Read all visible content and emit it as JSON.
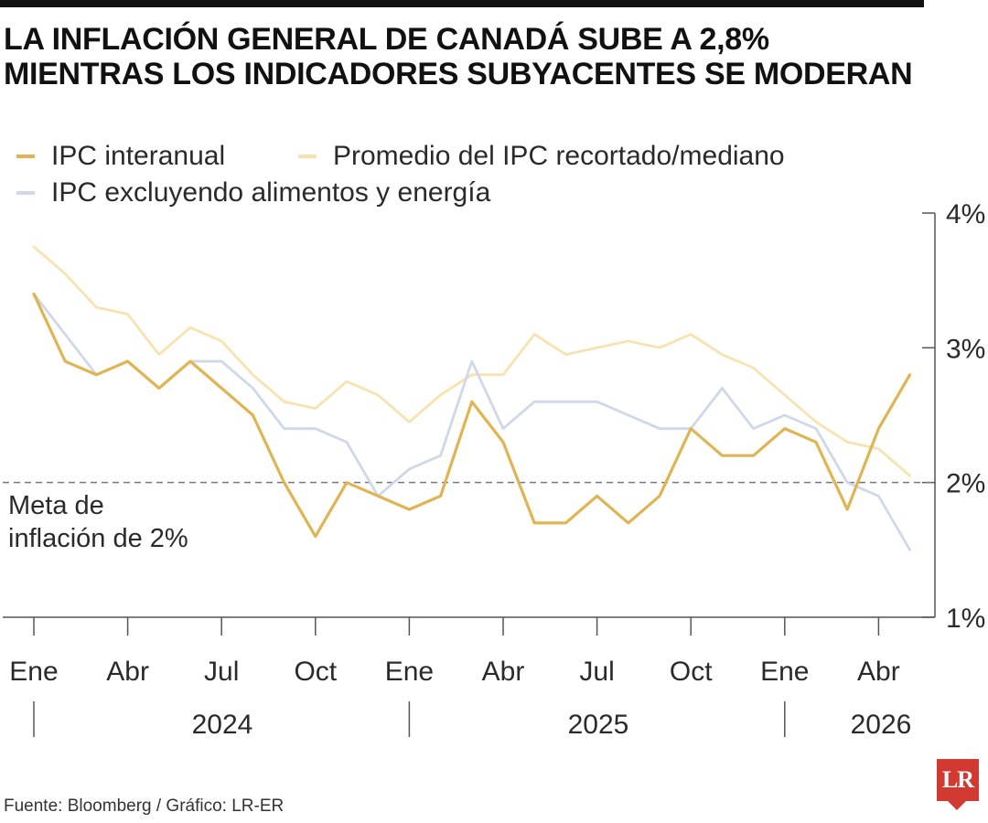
{
  "header": {
    "title_line1": "LA INFLACIÓN GENERAL DE CANADÁ SUBE A 2,8%",
    "title_line2": "MIENTRAS LOS INDICADORES SUBYACENTES SE MODERAN"
  },
  "footer": {
    "source": "Fuente: Bloomberg / Gráfico: LR-ER",
    "logo_text": "LR"
  },
  "colors": {
    "headline": "#e0b452",
    "trimmed": "#f8e2b0",
    "core": "#cfd8ea",
    "axis": "#555555",
    "target": "#777777",
    "logo": "#d23a31"
  },
  "chart_data": {
    "type": "line",
    "title": "LA INFLACIÓN GENERAL DE CANADÁ SUBE A 2,8% MIENTRAS LOS INDICADORES SUBYACENTES SE MODERAN",
    "x": [
      "2024-01",
      "2024-02",
      "2024-03",
      "2024-04",
      "2024-05",
      "2024-06",
      "2024-07",
      "2024-08",
      "2024-09",
      "2024-10",
      "2024-11",
      "2024-12",
      "2025-01",
      "2025-02",
      "2025-03",
      "2025-04",
      "2025-05",
      "2025-06",
      "2025-07",
      "2025-08",
      "2025-09",
      "2025-10",
      "2025-11",
      "2025-12",
      "2026-01",
      "2026-02",
      "2026-03",
      "2026-04",
      "2026-05"
    ],
    "x_tick_labels": [
      "Ene",
      "Abr",
      "Jul",
      "Oct",
      "Ene",
      "Abr",
      "Jul",
      "Oct",
      "Ene",
      "Abr"
    ],
    "x_tick_months": [
      "2024-01",
      "2024-04",
      "2024-07",
      "2024-10",
      "2025-01",
      "2025-04",
      "2025-07",
      "2025-10",
      "2026-01",
      "2026-04"
    ],
    "year_labels": [
      "2024",
      "2025",
      "2026"
    ],
    "y_tick_labels": [
      "1%",
      "2%",
      "3%",
      "4%"
    ],
    "y_ticks": [
      1,
      2,
      3,
      4
    ],
    "ylim": [
      1,
      4
    ],
    "y_axis_side": "right",
    "grid": false,
    "legend_position": "top-left",
    "series": [
      {
        "name": "IPC interanual",
        "color": "#e0b452",
        "values": [
          3.4,
          2.9,
          2.8,
          2.9,
          2.7,
          2.9,
          2.7,
          2.5,
          2.0,
          1.6,
          2.0,
          1.9,
          1.8,
          1.9,
          2.6,
          2.3,
          1.7,
          1.7,
          1.9,
          1.7,
          1.9,
          2.4,
          2.2,
          2.2,
          2.4,
          2.3,
          1.8,
          2.4,
          2.8
        ]
      },
      {
        "name": "Promedio del IPC recortado/mediano",
        "color": "#f8e2b0",
        "values": [
          3.75,
          3.55,
          3.3,
          3.25,
          2.95,
          3.15,
          3.05,
          2.8,
          2.6,
          2.55,
          2.75,
          2.65,
          2.45,
          2.65,
          2.8,
          2.8,
          3.1,
          2.95,
          3.0,
          3.05,
          3.0,
          3.1,
          2.95,
          2.85,
          2.65,
          2.45,
          2.3,
          2.25,
          2.05
        ]
      },
      {
        "name": "IPC excluyendo alimentos y energía",
        "color": "#cfd8ea",
        "values": [
          3.4,
          3.1,
          2.8,
          2.9,
          2.7,
          2.9,
          2.9,
          2.7,
          2.4,
          2.4,
          2.3,
          1.9,
          2.1,
          2.2,
          2.9,
          2.4,
          2.6,
          2.6,
          2.6,
          2.5,
          2.4,
          2.4,
          2.7,
          2.4,
          2.5,
          2.4,
          2.0,
          1.9,
          1.5
        ]
      }
    ],
    "target_line": {
      "value": 2,
      "label_line1": "Meta de",
      "label_line2": "inflación de 2%"
    }
  }
}
